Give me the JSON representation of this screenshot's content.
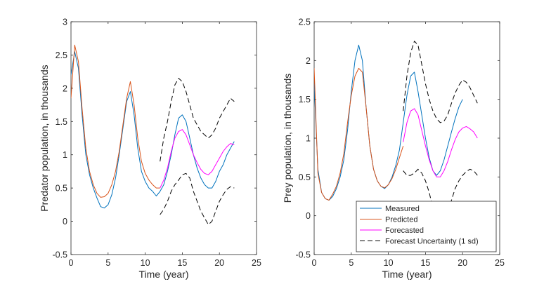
{
  "chart_data": [
    {
      "type": "line",
      "xlabel": "Time (year)",
      "ylabel": "Predator population, in thousands",
      "xlim": [
        0,
        25
      ],
      "ylim": [
        -0.5,
        3
      ],
      "xticks": [
        "0",
        "5",
        "10",
        "15",
        "20",
        "25"
      ],
      "yticks": [
        "-0.5",
        "0",
        "0.5",
        "1",
        "1.5",
        "2",
        "2.5",
        "3"
      ],
      "grid": false,
      "series": [
        {
          "name": "Measured",
          "color": "#0072BD",
          "x": [
            0,
            0.5,
            1,
            1.5,
            2,
            2.5,
            3,
            3.5,
            4,
            4.5,
            5,
            5.5,
            6,
            6.5,
            7,
            7.5,
            8,
            8.5,
            9,
            9.5,
            10,
            10.5,
            11,
            11.5,
            12,
            12.5,
            13,
            13.5,
            14,
            14.5,
            15,
            15.5,
            16,
            16.5,
            17,
            17.5,
            18,
            18.5,
            19,
            19.5,
            20,
            20.5,
            21,
            21.5,
            22
          ],
          "y": [
            2.2,
            2.55,
            2.3,
            1.6,
            1.0,
            0.7,
            0.5,
            0.35,
            0.22,
            0.2,
            0.25,
            0.4,
            0.65,
            1.0,
            1.4,
            1.8,
            1.95,
            1.6,
            1.1,
            0.75,
            0.6,
            0.5,
            0.45,
            0.38,
            0.45,
            0.55,
            0.75,
            1.0,
            1.3,
            1.55,
            1.6,
            1.5,
            1.25,
            1.0,
            0.8,
            0.65,
            0.55,
            0.5,
            0.5,
            0.6,
            0.75,
            0.85,
            1.0,
            1.1,
            1.2
          ]
        },
        {
          "name": "Predicted",
          "color": "#D95319",
          "x": [
            0,
            0.5,
            1,
            1.5,
            2,
            2.5,
            3,
            3.5,
            4,
            4.5,
            5,
            5.5,
            6,
            6.5,
            7,
            7.5,
            8,
            8.5,
            9,
            9.5,
            10,
            10.5,
            11,
            11.5,
            12
          ],
          "y": [
            1.85,
            2.65,
            2.4,
            1.7,
            1.1,
            0.75,
            0.55,
            0.42,
            0.36,
            0.37,
            0.42,
            0.55,
            0.75,
            1.05,
            1.45,
            1.85,
            2.1,
            1.75,
            1.25,
            0.9,
            0.72,
            0.62,
            0.55,
            0.5,
            0.5
          ]
        },
        {
          "name": "Forecasted",
          "color": "#FF00FF",
          "x": [
            12,
            12.5,
            13,
            13.5,
            14,
            14.5,
            15,
            15.5,
            16,
            16.5,
            17,
            17.5,
            18,
            18.5,
            19,
            19.5,
            20,
            20.5,
            21,
            21.5,
            22
          ],
          "y": [
            0.5,
            0.62,
            0.8,
            1.05,
            1.25,
            1.35,
            1.38,
            1.3,
            1.15,
            1.0,
            0.88,
            0.78,
            0.72,
            0.7,
            0.75,
            0.85,
            0.95,
            1.05,
            1.12,
            1.17,
            1.15
          ]
        },
        {
          "name": "Forecast Uncertainty (1 sd)",
          "color": "#000000",
          "dashed": true,
          "x": [
            12,
            12.5,
            13,
            13.5,
            14,
            14.5,
            15,
            15.5,
            16,
            16.5,
            17,
            17.5,
            18,
            18.5,
            19,
            19.5,
            20,
            20.5,
            21,
            21.5,
            22
          ],
          "y": [
            0.9,
            1.25,
            1.5,
            1.8,
            2.05,
            2.15,
            2.1,
            1.95,
            1.75,
            1.55,
            1.45,
            1.35,
            1.3,
            1.25,
            1.3,
            1.4,
            1.55,
            1.65,
            1.75,
            1.85,
            1.8
          ]
        },
        {
          "name": "Forecast Uncertainty (1 sd)",
          "color": "#000000",
          "dashed": true,
          "x": [
            12,
            12.5,
            13,
            13.5,
            14,
            14.5,
            15,
            15.5,
            16,
            16.5,
            17,
            17.5,
            18,
            18.5,
            19,
            19.5,
            20,
            20.5,
            21,
            21.5,
            22
          ],
          "y": [
            0.1,
            0.18,
            0.3,
            0.45,
            0.55,
            0.62,
            0.7,
            0.72,
            0.65,
            0.45,
            0.3,
            0.15,
            0.05,
            -0.05,
            0.0,
            0.15,
            0.3,
            0.4,
            0.48,
            0.52,
            0.5
          ]
        }
      ]
    },
    {
      "type": "line",
      "xlabel": "Time (year)",
      "ylabel": "Prey population, in thousands",
      "xlim": [
        0,
        25
      ],
      "ylim": [
        -0.5,
        2.5
      ],
      "xticks": [
        "0",
        "5",
        "10",
        "15",
        "20",
        "25"
      ],
      "yticks": [
        "-0.5",
        "0",
        "0.5",
        "1",
        "1.5",
        "2",
        "2.5"
      ],
      "grid": false,
      "legend_position": "bottom-right",
      "series": [
        {
          "name": "Measured",
          "color": "#0072BD",
          "x": [
            0,
            0.5,
            1,
            1.5,
            2,
            2.5,
            3,
            3.5,
            4,
            4.5,
            5,
            5.5,
            6,
            6.5,
            7,
            7.5,
            8,
            8.5,
            9,
            9.5,
            10,
            10.5,
            11,
            11.5,
            12,
            12.5,
            13,
            13.5,
            14,
            14.5,
            15,
            15.5,
            16,
            16.5,
            17,
            17.5,
            18,
            18.5,
            19,
            19.5,
            20
          ],
          "y": [
            1.7,
            0.6,
            0.3,
            0.22,
            0.2,
            0.25,
            0.35,
            0.5,
            0.72,
            1.1,
            1.6,
            2.0,
            2.2,
            2.0,
            1.4,
            0.9,
            0.6,
            0.45,
            0.38,
            0.35,
            0.4,
            0.5,
            0.65,
            0.85,
            1.2,
            1.55,
            1.8,
            1.85,
            1.6,
            1.3,
            1.0,
            0.75,
            0.58,
            0.52,
            0.58,
            0.72,
            0.9,
            1.08,
            1.25,
            1.4,
            1.5
          ]
        },
        {
          "name": "Predicted",
          "color": "#D95319",
          "x": [
            0,
            0.5,
            1,
            1.5,
            2,
            2.5,
            3,
            3.5,
            4,
            4.5,
            5,
            5.5,
            6,
            6.5,
            7,
            7.5,
            8,
            8.5,
            9,
            9.5,
            10,
            10.5,
            11,
            11.5,
            12
          ],
          "y": [
            1.9,
            0.55,
            0.3,
            0.22,
            0.2,
            0.28,
            0.38,
            0.55,
            0.8,
            1.2,
            1.55,
            1.8,
            1.9,
            1.85,
            1.4,
            0.9,
            0.6,
            0.45,
            0.38,
            0.36,
            0.4,
            0.48,
            0.6,
            0.75,
            0.9
          ]
        },
        {
          "name": "Forecasted",
          "color": "#FF00FF",
          "x": [
            12,
            12.5,
            13,
            13.5,
            14,
            14.5,
            15,
            15.5,
            16,
            16.5,
            17,
            17.5,
            18,
            18.5,
            19,
            19.5,
            20,
            20.5,
            21,
            21.5,
            22
          ],
          "y": [
            0.95,
            1.2,
            1.35,
            1.38,
            1.3,
            1.1,
            0.9,
            0.72,
            0.58,
            0.5,
            0.5,
            0.58,
            0.7,
            0.85,
            0.98,
            1.08,
            1.13,
            1.15,
            1.12,
            1.08,
            1.0
          ]
        },
        {
          "name": "Forecast Uncertainty (1 sd)",
          "color": "#000000",
          "dashed": true,
          "x": [
            12,
            12.5,
            13,
            13.5,
            14,
            14.5,
            15,
            15.5,
            16,
            16.5,
            17,
            17.5,
            18,
            18.5,
            19,
            19.5,
            20,
            20.5,
            21,
            21.5,
            22
          ],
          "y": [
            1.35,
            1.8,
            2.1,
            2.25,
            2.2,
            1.95,
            1.7,
            1.5,
            1.35,
            1.25,
            1.2,
            1.22,
            1.3,
            1.45,
            1.58,
            1.68,
            1.75,
            1.72,
            1.65,
            1.55,
            1.45
          ]
        },
        {
          "name": "Forecast Uncertainty (1 sd)",
          "color": "#000000",
          "dashed": true,
          "x": [
            12,
            12.5,
            13,
            13.5,
            14,
            14.5,
            15,
            15.5,
            16,
            16.5,
            17,
            17.5,
            18,
            18.5,
            19,
            19.5,
            20,
            20.5,
            21,
            21.5,
            22
          ],
          "y": [
            0.58,
            0.52,
            0.52,
            0.55,
            0.6,
            0.55,
            0.45,
            0.3,
            0.1,
            -0.05,
            -0.15,
            -0.1,
            0.05,
            0.2,
            0.35,
            0.45,
            0.52,
            0.57,
            0.6,
            0.58,
            0.52
          ]
        }
      ]
    }
  ],
  "legend": {
    "entries": [
      "Measured",
      "Predicted",
      "Forecasted",
      "Forecast Uncertainty (1 sd)"
    ]
  }
}
